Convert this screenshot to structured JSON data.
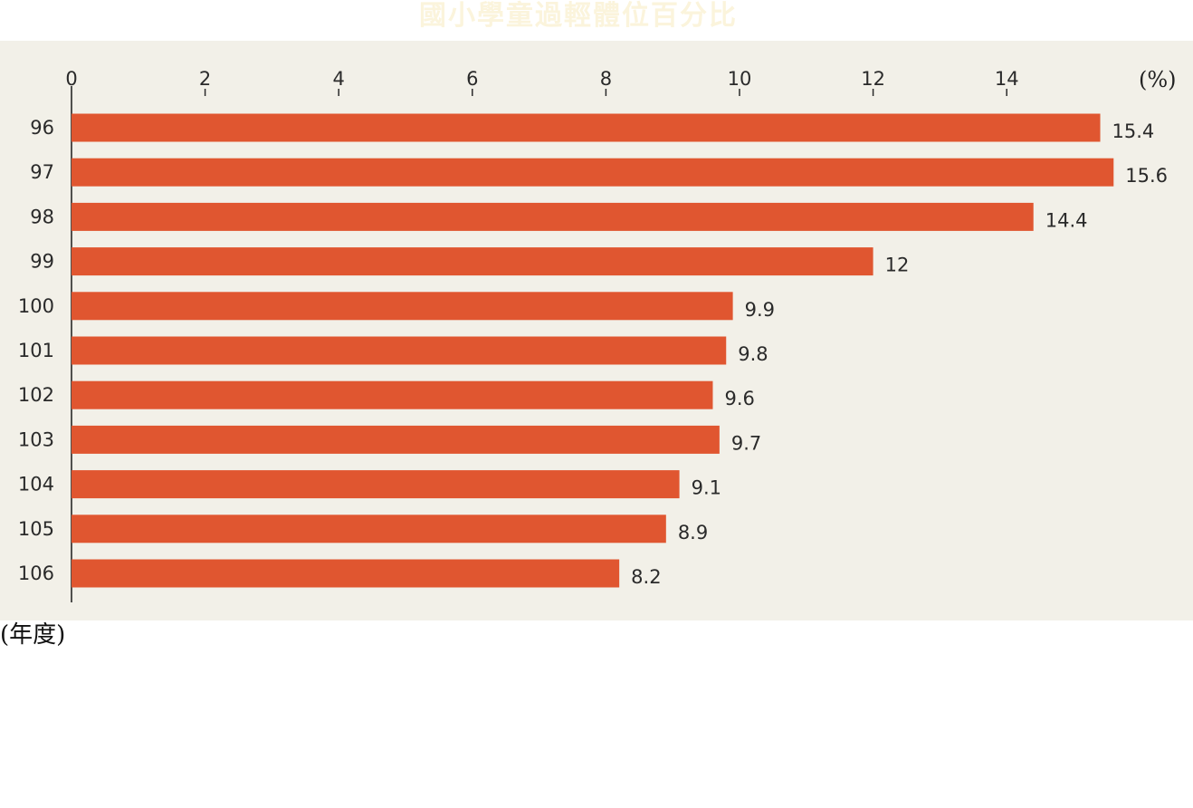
{
  "chart_data": {
    "type": "bar",
    "orientation": "horizontal",
    "title": "國小學童過輕體位百分比",
    "unit_label": "(%)",
    "category_axis_label": "(年度)",
    "categories": [
      "96",
      "97",
      "98",
      "99",
      "100",
      "101",
      "102",
      "103",
      "104",
      "105",
      "106"
    ],
    "values": [
      15.4,
      15.6,
      14.4,
      12,
      9.9,
      9.8,
      9.6,
      9.7,
      9.1,
      8.9,
      8.2
    ],
    "value_labels": [
      "15.4",
      "15.6",
      "14.4",
      "12",
      "9.9",
      "9.8",
      "9.6",
      "9.7",
      "9.1",
      "8.9",
      "8.2"
    ],
    "xlim": [
      0,
      15.6
    ],
    "xticks": [
      0,
      2,
      4,
      6,
      8,
      10,
      12,
      14
    ],
    "xtick_labels": [
      "0",
      "2",
      "4",
      "6",
      "8",
      "10",
      "12",
      "14"
    ],
    "grid": false,
    "bar_color": "#e05630",
    "background_color": "#f2f0e8",
    "title_color": "#fbf4dc"
  }
}
